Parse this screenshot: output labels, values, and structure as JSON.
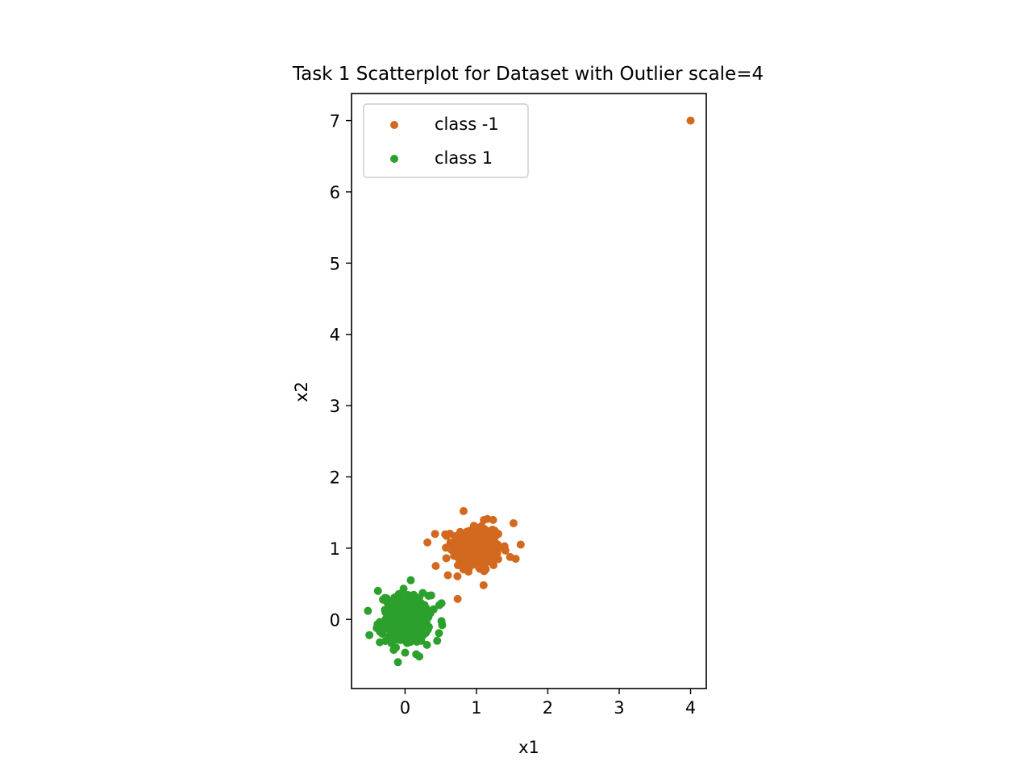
{
  "chart_data": {
    "type": "scatter",
    "title": "Task 1 Scatterplot for Dataset with Outlier scale=4",
    "xlabel": "x1",
    "ylabel": "x2",
    "xlim": [
      -0.75,
      4.22
    ],
    "ylim": [
      -0.97,
      7.38
    ],
    "xticks": [
      0,
      1,
      2,
      3,
      4
    ],
    "yticks": [
      0,
      1,
      2,
      3,
      4,
      5,
      6,
      7
    ],
    "grid": false,
    "legend_position": "upper-left",
    "series": [
      {
        "name": "class -1",
        "color": "#d2691e",
        "cluster": {
          "center": [
            1.0,
            1.0
          ],
          "std": 0.17,
          "count": 300
        },
        "extra_points": [
          [
            4.0,
            7.0
          ],
          [
            1.62,
            1.05
          ],
          [
            1.52,
            1.35
          ],
          [
            0.43,
            0.75
          ],
          [
            0.6,
            0.62
          ],
          [
            0.82,
            1.52
          ],
          [
            1.1,
            0.48
          ],
          [
            1.55,
            0.85
          ],
          [
            0.42,
            1.2
          ]
        ]
      },
      {
        "name": "class 1",
        "color": "#2ca02c",
        "cluster": {
          "center": [
            0.0,
            0.0
          ],
          "std": 0.17,
          "count": 300
        },
        "extra_points": [
          [
            -0.52,
            0.12
          ],
          [
            -0.5,
            -0.22
          ],
          [
            0.08,
            0.55
          ],
          [
            -0.1,
            -0.6
          ],
          [
            0.52,
            -0.08
          ],
          [
            0.2,
            -0.52
          ],
          [
            0.48,
            0.2
          ],
          [
            -0.38,
            0.4
          ],
          [
            0.45,
            -0.3
          ]
        ]
      }
    ]
  }
}
